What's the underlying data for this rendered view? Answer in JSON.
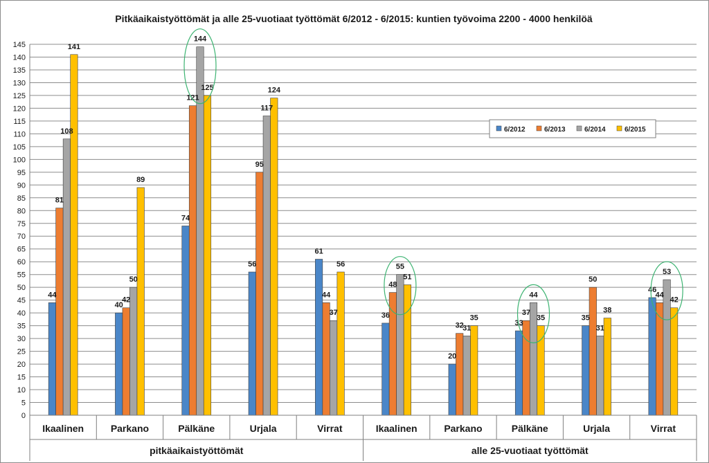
{
  "chart_data": {
    "type": "bar",
    "title": "Pitkäaikaistyöttömät ja alle 25-vuotiaat työttömät 6/2012 - 6/2015: kuntien työvoima 2200 - 4000 henkilöä",
    "xlabel": "",
    "ylabel": "",
    "ylim": [
      0,
      145
    ],
    "ytick_step": 5,
    "grid": true,
    "legend_position": "right",
    "groups": [
      {
        "label": "pitkäaikaistyöttömät",
        "categories": [
          "Ikaalinen",
          "Parkano",
          "Pälkäne",
          "Urjala",
          "Virrat"
        ]
      },
      {
        "label": "alle 25-vuotiaat työttömät",
        "categories": [
          "Ikaalinen",
          "Parkano",
          "Pälkäne",
          "Urjala",
          "Virrat"
        ]
      }
    ],
    "categories": [
      "Ikaalinen",
      "Parkano",
      "Pälkäne",
      "Urjala",
      "Virrat",
      "Ikaalinen",
      "Parkano",
      "Pälkäne",
      "Urjala",
      "Virrat"
    ],
    "series": [
      {
        "name": "6/2012",
        "color": "#4a86c8",
        "values": [
          44,
          40,
          74,
          56,
          61,
          36,
          20,
          33,
          35,
          46
        ]
      },
      {
        "name": "6/2013",
        "color": "#ed7d31",
        "values": [
          81,
          42,
          121,
          95,
          44,
          48,
          32,
          37,
          50,
          44
        ]
      },
      {
        "name": "6/2014",
        "color": "#a5a5a5",
        "values": [
          108,
          50,
          144,
          117,
          37,
          55,
          31,
          44,
          31,
          53
        ]
      },
      {
        "name": "6/2015",
        "color": "#ffc000",
        "values": [
          141,
          89,
          125,
          124,
          56,
          51,
          35,
          35,
          38,
          42
        ]
      }
    ],
    "highlights": [
      {
        "category_index": 2,
        "series_index": 2,
        "color": "#3cb371"
      },
      {
        "category_index": 5,
        "series_index": 2,
        "color": "#3cb371"
      },
      {
        "category_index": 7,
        "series_index": 2,
        "color": "#3cb371"
      },
      {
        "category_index": 9,
        "series_index": 2,
        "color": "#3cb371"
      }
    ]
  }
}
